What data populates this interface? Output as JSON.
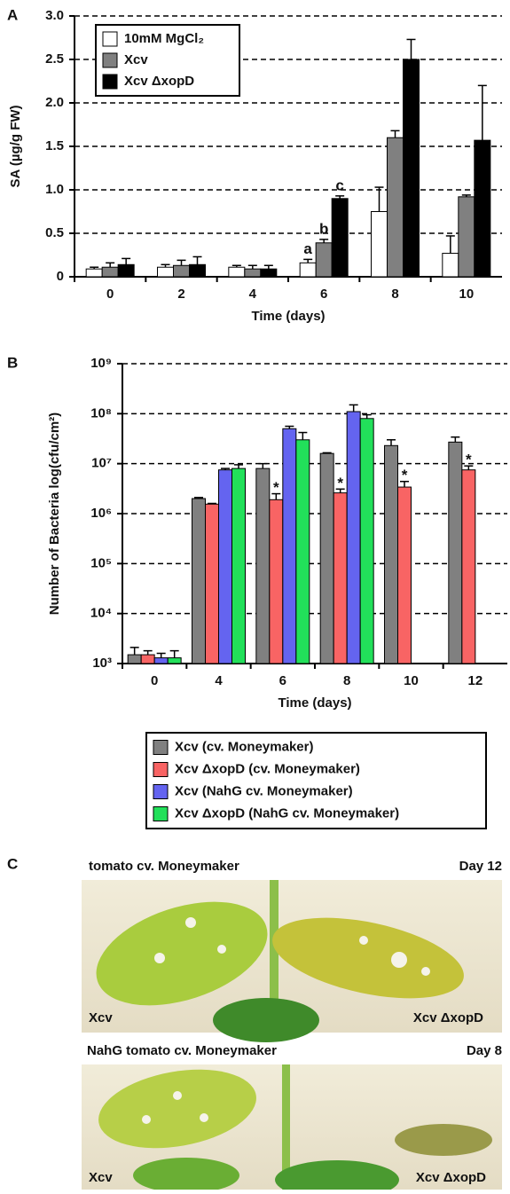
{
  "chart_data": [
    {
      "type": "bar",
      "panel": "A",
      "ylabel": "SA (µg/g FW)",
      "xlabel": "Time (days)",
      "categories": [
        "0",
        "2",
        "4",
        "6",
        "8",
        "10"
      ],
      "series": [
        {
          "name": "10mM MgCl₂",
          "color": "#ffffff",
          "values": [
            0.09,
            0.11,
            0.11,
            0.16,
            0.75,
            0.27
          ],
          "errors": [
            0.02,
            0.03,
            0.02,
            0.04,
            0.28,
            0.2
          ]
        },
        {
          "name": "Xcv",
          "color": "#808080",
          "values": [
            0.11,
            0.13,
            0.09,
            0.39,
            1.6,
            0.92
          ],
          "errors": [
            0.05,
            0.06,
            0.04,
            0.04,
            0.08,
            0.02
          ]
        },
        {
          "name": "Xcv ΔxopD",
          "color": "#000000",
          "values": [
            0.14,
            0.14,
            0.09,
            0.9,
            2.5,
            1.57
          ],
          "errors": [
            0.07,
            0.09,
            0.04,
            0.03,
            0.23,
            0.63
          ]
        }
      ],
      "annotations": [
        {
          "text": "a",
          "category": "6",
          "series": "10mM MgCl₂"
        },
        {
          "text": "b",
          "category": "6",
          "series": "Xcv"
        },
        {
          "text": "c",
          "category": "6",
          "series": "Xcv ΔxopD"
        }
      ],
      "ylim": [
        0,
        3
      ],
      "yticks": [
        0,
        0.5,
        {
          "value": 1,
          "label": "1.0"
        },
        1.5,
        {
          "value": 2,
          "label": "2.0"
        },
        2.5,
        {
          "value": 3,
          "label": "3.0"
        }
      ],
      "grid": true,
      "legend": "upper left"
    },
    {
      "type": "bar",
      "panel": "B",
      "ylabel": "Number of Bacteria  log(cfu/cm²)",
      "xlabel": "Time (days)",
      "log_y": true,
      "categories": [
        "0",
        "4",
        "6",
        "8",
        "10",
        "12"
      ],
      "series": [
        {
          "name": "Xcv (cv. Moneymaker)",
          "color": "#808080",
          "values": [
            1500,
            2000000,
            8000000,
            16000000,
            23000000,
            27000000
          ],
          "errors": [
            600,
            100000,
            2000000,
            500000,
            7000000,
            7000000
          ]
        },
        {
          "name": "Xcv ΔxopD  (cv. Moneymaker)",
          "color": "#f86464",
          "values": [
            1500,
            1550000,
            1900000,
            2600000,
            3400000,
            7500000
          ],
          "errors": [
            300,
            50000,
            600000,
            500000,
            1000000,
            1500000
          ]
        },
        {
          "name": "Xcv (NahG cv. Moneymaker)",
          "color": "#6464f0",
          "values": [
            1300,
            7500000,
            50000000,
            110000000,
            null,
            null
          ],
          "errors": [
            300,
            500000,
            6000000,
            40000000,
            null,
            null
          ]
        },
        {
          "name": "Xcv ΔxopD (NahG cv. Moneymaker)",
          "color": "#22e05a",
          "values": [
            1300,
            8000000,
            30000000,
            80000000,
            null,
            null
          ],
          "errors": [
            500,
            1500000,
            12000000,
            15000000,
            null,
            null
          ]
        }
      ],
      "annotations": [
        {
          "text": "*",
          "category": "6",
          "series": "Xcv ΔxopD  (cv. Moneymaker)"
        },
        {
          "text": "*",
          "category": "8",
          "series": "Xcv ΔxopD  (cv. Moneymaker)"
        },
        {
          "text": "*",
          "category": "10",
          "series": "Xcv ΔxopD  (cv. Moneymaker)"
        },
        {
          "text": "*",
          "category": "12",
          "series": "Xcv ΔxopD  (cv. Moneymaker)"
        }
      ],
      "ylim": [
        1000,
        1000000000
      ],
      "yticks": [
        {
          "value": 1000,
          "label": "10³"
        },
        {
          "value": 10000,
          "label": "10⁴"
        },
        {
          "value": 100000,
          "label": "10⁵"
        },
        {
          "value": 1000000,
          "label": "10⁶"
        },
        {
          "value": 10000000,
          "label": "10⁷"
        },
        {
          "value": 100000000,
          "label": "10⁸"
        },
        {
          "value": 1000000000,
          "label": "10⁹"
        }
      ],
      "grid": true,
      "legend": "below"
    }
  ],
  "panel_c": {
    "panel": "C",
    "photos": [
      {
        "title": "tomato cv. Moneymaker",
        "day": "Day 12",
        "left": "Xcv",
        "right": "Xcv ΔxopD"
      },
      {
        "title": "NahG tomato cv. Moneymaker",
        "day": "Day 8",
        "left": "Xcv",
        "right": "Xcv ΔxopD"
      }
    ]
  }
}
